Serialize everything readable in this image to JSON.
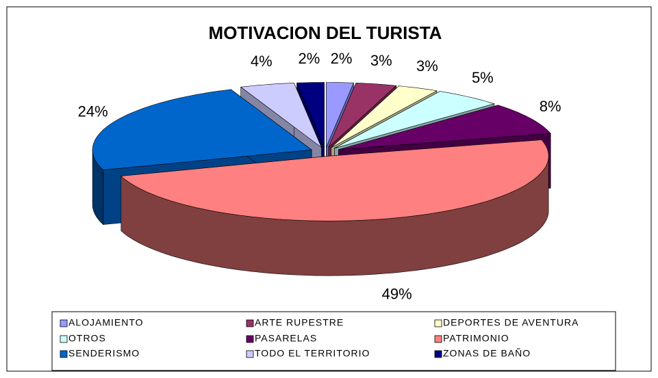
{
  "chart_data": {
    "type": "pie3d",
    "title": "MOTIVACION DEL TURISTA",
    "categories": [
      "ALOJAMIENTO",
      "ARTE RUPESTRE",
      "DEPORTES DE AVENTURA",
      "OTROS",
      "PASARELAS",
      "PATRIMONIO",
      "SENDERISMO",
      "TODO EL TERRITORIO",
      "ZONAS DE BAÑO"
    ],
    "values": [
      2,
      3,
      3,
      5,
      8,
      49,
      24,
      4,
      2
    ],
    "value_labels": [
      "2%",
      "3%",
      "3%",
      "5%",
      "8%",
      "49%",
      "24%",
      "4%",
      "2%"
    ],
    "colors": [
      "#9999ff",
      "#993366",
      "#ffffcc",
      "#ccffff",
      "#660066",
      "#ff8080",
      "#0066cc",
      "#ccccff",
      "#000080"
    ],
    "legend": "bottom"
  }
}
